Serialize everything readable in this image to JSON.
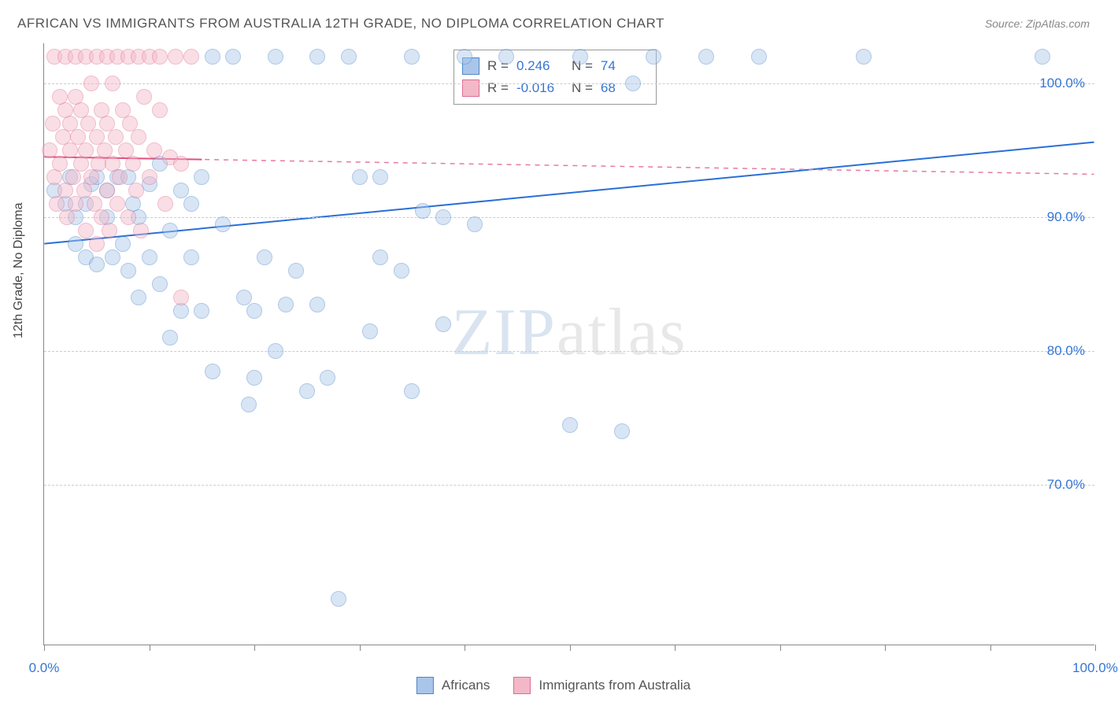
{
  "title": "AFRICAN VS IMMIGRANTS FROM AUSTRALIA 12TH GRADE, NO DIPLOMA CORRELATION CHART",
  "source": "Source: ZipAtlas.com",
  "ylabel": "12th Grade, No Diploma",
  "watermark_a": "ZIP",
  "watermark_b": "atlas",
  "chart": {
    "type": "scatter",
    "background_color": "#ffffff",
    "grid_color": "#cccccc",
    "axis_color": "#888888",
    "xlim": [
      0,
      100
    ],
    "ylim": [
      58,
      103
    ],
    "yticks": [
      70,
      80,
      90,
      100
    ],
    "ytick_labels": [
      "70.0%",
      "80.0%",
      "90.0%",
      "100.0%"
    ],
    "xticks": [
      0,
      10,
      20,
      30,
      40,
      50,
      60,
      70,
      80,
      90,
      100
    ],
    "xtick_labels_shown": {
      "0": "0.0%",
      "100": "100.0%"
    },
    "marker_radius": 10,
    "marker_opacity": 0.45,
    "series": [
      {
        "name": "Africans",
        "fill": "#a9c6ea",
        "stroke": "#4f86c6",
        "R": "0.246",
        "N": "74",
        "trend": {
          "x1": 0,
          "y1": 88.0,
          "x2": 100,
          "y2": 95.6,
          "color": "#2a6fd6",
          "width": 2,
          "dash": "none"
        },
        "points": [
          [
            1,
            92
          ],
          [
            2,
            91
          ],
          [
            2.5,
            93
          ],
          [
            3,
            90
          ],
          [
            3,
            88
          ],
          [
            4,
            91
          ],
          [
            4,
            87
          ],
          [
            4.5,
            92.5
          ],
          [
            5,
            93
          ],
          [
            5,
            86.5
          ],
          [
            6,
            92
          ],
          [
            6,
            90
          ],
          [
            6.5,
            87
          ],
          [
            7,
            93
          ],
          [
            7.5,
            88
          ],
          [
            8,
            93
          ],
          [
            8,
            86
          ],
          [
            8.5,
            91
          ],
          [
            9,
            90
          ],
          [
            9,
            84
          ],
          [
            10,
            92.5
          ],
          [
            10,
            87
          ],
          [
            11,
            94
          ],
          [
            11,
            85
          ],
          [
            12,
            89
          ],
          [
            12,
            81
          ],
          [
            13,
            92
          ],
          [
            13,
            83
          ],
          [
            14,
            91
          ],
          [
            14,
            87
          ],
          [
            15,
            93
          ],
          [
            15,
            83
          ],
          [
            16,
            102
          ],
          [
            16,
            78.5
          ],
          [
            17,
            89.5
          ],
          [
            18,
            102
          ],
          [
            19,
            84
          ],
          [
            19.5,
            76
          ],
          [
            20,
            83
          ],
          [
            20,
            78
          ],
          [
            21,
            87
          ],
          [
            22,
            102
          ],
          [
            22,
            80
          ],
          [
            23,
            83.5
          ],
          [
            24,
            86
          ],
          [
            25,
            77
          ],
          [
            26,
            102
          ],
          [
            26,
            83.5
          ],
          [
            27,
            78
          ],
          [
            28,
            61.5
          ],
          [
            29,
            102
          ],
          [
            30,
            93
          ],
          [
            31,
            81.5
          ],
          [
            32,
            87
          ],
          [
            32,
            93
          ],
          [
            34,
            86
          ],
          [
            35,
            102
          ],
          [
            35,
            77
          ],
          [
            36,
            90.5
          ],
          [
            38,
            82
          ],
          [
            38,
            90
          ],
          [
            40,
            102
          ],
          [
            41,
            89.5
          ],
          [
            44,
            102
          ],
          [
            50,
            74.5
          ],
          [
            51,
            102
          ],
          [
            55,
            74
          ],
          [
            56,
            100
          ],
          [
            58,
            102
          ],
          [
            63,
            102
          ],
          [
            68,
            102
          ],
          [
            78,
            102
          ],
          [
            95,
            102
          ]
        ]
      },
      {
        "name": "Immigrants from Australia",
        "fill": "#f3b8c8",
        "stroke": "#e06c8f",
        "R": "-0.016",
        "N": "68",
        "trend": {
          "x1": 0,
          "y1": 94.5,
          "x2": 100,
          "y2": 93.2,
          "color": "#e77aa0",
          "width": 1.5,
          "dash": "6,6"
        },
        "solid_trend": {
          "x1": 0,
          "y1": 94.5,
          "x2": 15,
          "y2": 94.3,
          "color": "#e05080",
          "width": 2
        },
        "points": [
          [
            0.5,
            95
          ],
          [
            0.8,
            97
          ],
          [
            1,
            102
          ],
          [
            1,
            93
          ],
          [
            1.2,
            91
          ],
          [
            1.5,
            99
          ],
          [
            1.5,
            94
          ],
          [
            1.8,
            96
          ],
          [
            2,
            92
          ],
          [
            2,
            98
          ],
          [
            2,
            102
          ],
          [
            2.2,
            90
          ],
          [
            2.5,
            95
          ],
          [
            2.5,
            97
          ],
          [
            2.8,
            93
          ],
          [
            3,
            99
          ],
          [
            3,
            91
          ],
          [
            3,
            102
          ],
          [
            3.2,
            96
          ],
          [
            3.5,
            94
          ],
          [
            3.5,
            98
          ],
          [
            3.8,
            92
          ],
          [
            4,
            95
          ],
          [
            4,
            102
          ],
          [
            4,
            89
          ],
          [
            4.2,
            97
          ],
          [
            4.5,
            93
          ],
          [
            4.5,
            100
          ],
          [
            4.8,
            91
          ],
          [
            5,
            96
          ],
          [
            5,
            102
          ],
          [
            5,
            88
          ],
          [
            5.2,
            94
          ],
          [
            5.5,
            98
          ],
          [
            5.5,
            90
          ],
          [
            5.8,
            95
          ],
          [
            6,
            102
          ],
          [
            6,
            92
          ],
          [
            6,
            97
          ],
          [
            6.2,
            89
          ],
          [
            6.5,
            94
          ],
          [
            6.5,
            100
          ],
          [
            6.8,
            96
          ],
          [
            7,
            91
          ],
          [
            7,
            102
          ],
          [
            7.2,
            93
          ],
          [
            7.5,
            98
          ],
          [
            7.8,
            95
          ],
          [
            8,
            102
          ],
          [
            8,
            90
          ],
          [
            8.2,
            97
          ],
          [
            8.5,
            94
          ],
          [
            8.8,
            92
          ],
          [
            9,
            102
          ],
          [
            9,
            96
          ],
          [
            9.2,
            89
          ],
          [
            9.5,
            99
          ],
          [
            10,
            102
          ],
          [
            10,
            93
          ],
          [
            10.5,
            95
          ],
          [
            11,
            98
          ],
          [
            11,
            102
          ],
          [
            11.5,
            91
          ],
          [
            12,
            94.5
          ],
          [
            12.5,
            102
          ],
          [
            13,
            84
          ],
          [
            13,
            94
          ],
          [
            14,
            102
          ]
        ]
      }
    ]
  },
  "legend": {
    "series1_label": "Africans",
    "series2_label": "Immigrants from Australia"
  },
  "stats_labels": {
    "R": "R =",
    "N": "N ="
  }
}
